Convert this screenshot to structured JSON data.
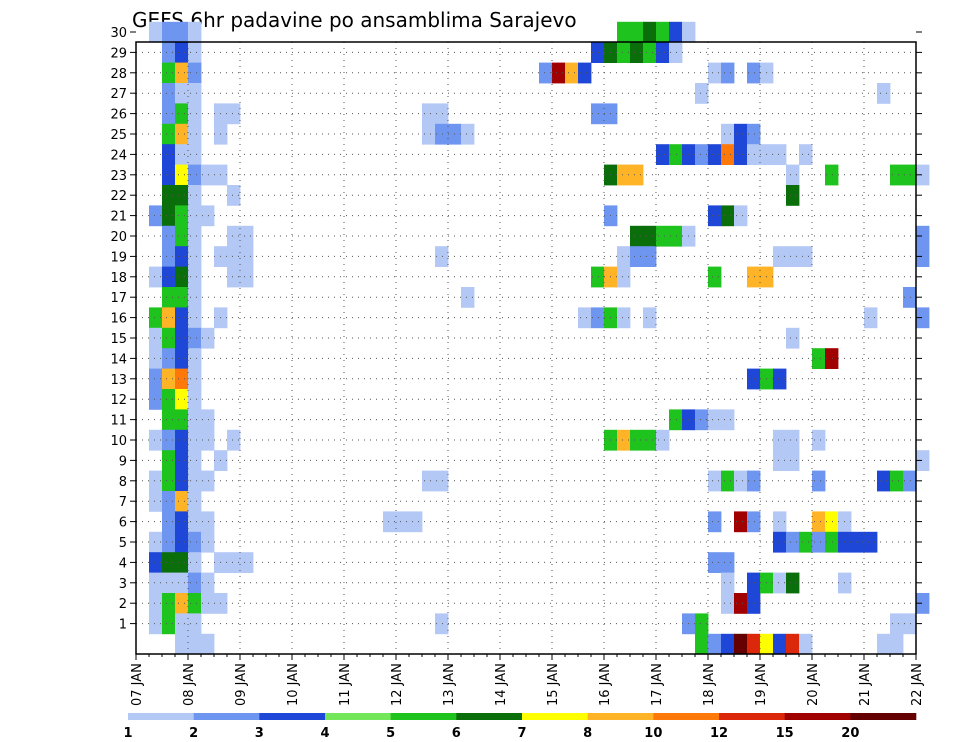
{
  "chart_data": {
    "type": "heatmap",
    "title": "GEFS 6hr padavine po ansamblima Sarajevo",
    "xlabel": "",
    "ylabel": "",
    "x_ticks": [
      "07 JAN",
      "08 JAN",
      "09 JAN",
      "10 JAN",
      "11 JAN",
      "12 JAN",
      "13 JAN",
      "14 JAN",
      "15 JAN",
      "16 JAN",
      "17 JAN",
      "18 JAN",
      "19 JAN",
      "20 JAN",
      "21 JAN",
      "22 JAN"
    ],
    "y_ticks": [
      "1",
      "2",
      "3",
      "4",
      "5",
      "6",
      "7",
      "8",
      "9",
      "10",
      "11",
      "12",
      "13",
      "14",
      "15",
      "16",
      "17",
      "18",
      "19",
      "20",
      "21",
      "22",
      "23",
      "24",
      "25",
      "26",
      "27",
      "28",
      "29",
      "30"
    ],
    "xlim": [
      0,
      60
    ],
    "ylim": [
      0,
      30
    ],
    "grid": true,
    "colorbar": {
      "labels": [
        "1",
        "2",
        "3",
        "4",
        "5",
        "6",
        "7",
        "8",
        "10",
        "12",
        "15",
        "20"
      ],
      "colors": [
        "#b4c8f5",
        "#6e96f0",
        "#1e46d7",
        "#73e65a",
        "#1ec31e",
        "#0a6e0a",
        "#ffff00",
        "#ffb428",
        "#ff780a",
        "#dc280a",
        "#a00000",
        "#640000"
      ]
    },
    "cells": [
      [
        1,
        30,
        1
      ],
      [
        2,
        30,
        2
      ],
      [
        3,
        30,
        2
      ],
      [
        4,
        30,
        1
      ],
      [
        37,
        30,
        5
      ],
      [
        38,
        30,
        5
      ],
      [
        39,
        30,
        6
      ],
      [
        40,
        30,
        5
      ],
      [
        41,
        30,
        3
      ],
      [
        42,
        30,
        1
      ],
      [
        2,
        29,
        2
      ],
      [
        3,
        29,
        3
      ],
      [
        4,
        29,
        1
      ],
      [
        35,
        29,
        3
      ],
      [
        36,
        29,
        6
      ],
      [
        37,
        29,
        5
      ],
      [
        38,
        29,
        6
      ],
      [
        39,
        29,
        5
      ],
      [
        40,
        29,
        3
      ],
      [
        41,
        29,
        1
      ],
      [
        2,
        28,
        5
      ],
      [
        3,
        28,
        8
      ],
      [
        4,
        28,
        2
      ],
      [
        31,
        28,
        2
      ],
      [
        32,
        28,
        11
      ],
      [
        33,
        28,
        8
      ],
      [
        34,
        28,
        3
      ],
      [
        44,
        28,
        1
      ],
      [
        45,
        28,
        2
      ],
      [
        47,
        28,
        2
      ],
      [
        48,
        28,
        1
      ],
      [
        2,
        27,
        2
      ],
      [
        3,
        27,
        1
      ],
      [
        4,
        27,
        1
      ],
      [
        43,
        27,
        1
      ],
      [
        57,
        27,
        1
      ],
      [
        2,
        26,
        2
      ],
      [
        3,
        26,
        5
      ],
      [
        4,
        26,
        1
      ],
      [
        6,
        26,
        1
      ],
      [
        7,
        26,
        1
      ],
      [
        22,
        26,
        1
      ],
      [
        23,
        26,
        1
      ],
      [
        35,
        26,
        2
      ],
      [
        36,
        26,
        2
      ],
      [
        2,
        25,
        5
      ],
      [
        3,
        25,
        8
      ],
      [
        4,
        25,
        1
      ],
      [
        6,
        25,
        1
      ],
      [
        22,
        25,
        1
      ],
      [
        23,
        25,
        2
      ],
      [
        24,
        25,
        2
      ],
      [
        25,
        25,
        1
      ],
      [
        45,
        25,
        1
      ],
      [
        46,
        25,
        3
      ],
      [
        47,
        25,
        2
      ],
      [
        2,
        24,
        3
      ],
      [
        3,
        24,
        1
      ],
      [
        4,
        24,
        1
      ],
      [
        40,
        24,
        3
      ],
      [
        41,
        24,
        5
      ],
      [
        42,
        24,
        3
      ],
      [
        43,
        24,
        2
      ],
      [
        44,
        24,
        3
      ],
      [
        45,
        24,
        9
      ],
      [
        46,
        24,
        3
      ],
      [
        47,
        24,
        1
      ],
      [
        48,
        24,
        1
      ],
      [
        49,
        24,
        1
      ],
      [
        51,
        24,
        1
      ],
      [
        2,
        23,
        3
      ],
      [
        3,
        23,
        7
      ],
      [
        4,
        23,
        2
      ],
      [
        5,
        23,
        1
      ],
      [
        6,
        23,
        1
      ],
      [
        36,
        23,
        6
      ],
      [
        37,
        23,
        8
      ],
      [
        38,
        23,
        8
      ],
      [
        50,
        23,
        1
      ],
      [
        53,
        23,
        5
      ],
      [
        58,
        23,
        5
      ],
      [
        59,
        23,
        5
      ],
      [
        60,
        23,
        1
      ],
      [
        2,
        22,
        6
      ],
      [
        3,
        22,
        6
      ],
      [
        4,
        22,
        1
      ],
      [
        7,
        22,
        1
      ],
      [
        50,
        22,
        6
      ],
      [
        1,
        21,
        2
      ],
      [
        2,
        21,
        6
      ],
      [
        3,
        21,
        5
      ],
      [
        4,
        21,
        1
      ],
      [
        5,
        21,
        1
      ],
      [
        36,
        21,
        2
      ],
      [
        44,
        21,
        3
      ],
      [
        45,
        21,
        6
      ],
      [
        46,
        21,
        1
      ],
      [
        2,
        20,
        2
      ],
      [
        3,
        20,
        5
      ],
      [
        4,
        20,
        1
      ],
      [
        7,
        20,
        1
      ],
      [
        8,
        20,
        1
      ],
      [
        38,
        20,
        6
      ],
      [
        39,
        20,
        6
      ],
      [
        40,
        20,
        5
      ],
      [
        41,
        20,
        5
      ],
      [
        42,
        20,
        1
      ],
      [
        60,
        20,
        2
      ],
      [
        2,
        19,
        2
      ],
      [
        3,
        19,
        3
      ],
      [
        4,
        19,
        1
      ],
      [
        6,
        19,
        1
      ],
      [
        7,
        19,
        1
      ],
      [
        8,
        19,
        1
      ],
      [
        23,
        19,
        1
      ],
      [
        37,
        19,
        1
      ],
      [
        38,
        19,
        2
      ],
      [
        39,
        19,
        2
      ],
      [
        49,
        19,
        1
      ],
      [
        50,
        19,
        1
      ],
      [
        51,
        19,
        1
      ],
      [
        60,
        19,
        2
      ],
      [
        1,
        18,
        1
      ],
      [
        2,
        18,
        3
      ],
      [
        3,
        18,
        6
      ],
      [
        4,
        18,
        1
      ],
      [
        7,
        18,
        1
      ],
      [
        8,
        18,
        1
      ],
      [
        35,
        18,
        5
      ],
      [
        36,
        18,
        8
      ],
      [
        37,
        18,
        1
      ],
      [
        44,
        18,
        5
      ],
      [
        47,
        18,
        8
      ],
      [
        48,
        18,
        8
      ],
      [
        2,
        17,
        5
      ],
      [
        3,
        17,
        5
      ],
      [
        4,
        17,
        1
      ],
      [
        25,
        17,
        1
      ],
      [
        59,
        17,
        2
      ],
      [
        1,
        16,
        5
      ],
      [
        2,
        16,
        8
      ],
      [
        3,
        16,
        3
      ],
      [
        4,
        16,
        1
      ],
      [
        6,
        16,
        1
      ],
      [
        34,
        16,
        1
      ],
      [
        35,
        16,
        2
      ],
      [
        36,
        16,
        5
      ],
      [
        37,
        16,
        1
      ],
      [
        39,
        16,
        1
      ],
      [
        56,
        16,
        1
      ],
      [
        60,
        16,
        2
      ],
      [
        1,
        15,
        1
      ],
      [
        2,
        15,
        5
      ],
      [
        3,
        15,
        3
      ],
      [
        4,
        15,
        2
      ],
      [
        5,
        15,
        1
      ],
      [
        50,
        15,
        1
      ],
      [
        1,
        14,
        1
      ],
      [
        2,
        14,
        2
      ],
      [
        3,
        14,
        3
      ],
      [
        4,
        14,
        1
      ],
      [
        52,
        14,
        5
      ],
      [
        53,
        14,
        11
      ],
      [
        1,
        13,
        2
      ],
      [
        2,
        13,
        8
      ],
      [
        3,
        13,
        9
      ],
      [
        4,
        13,
        1
      ],
      [
        47,
        13,
        3
      ],
      [
        48,
        13,
        5
      ],
      [
        49,
        13,
        3
      ],
      [
        1,
        12,
        2
      ],
      [
        2,
        12,
        5
      ],
      [
        3,
        12,
        7
      ],
      [
        4,
        12,
        1
      ],
      [
        2,
        11,
        5
      ],
      [
        3,
        11,
        5
      ],
      [
        4,
        11,
        1
      ],
      [
        5,
        11,
        1
      ],
      [
        41,
        11,
        5
      ],
      [
        42,
        11,
        3
      ],
      [
        43,
        11,
        2
      ],
      [
        44,
        11,
        1
      ],
      [
        45,
        11,
        1
      ],
      [
        1,
        10,
        1
      ],
      [
        2,
        10,
        2
      ],
      [
        3,
        10,
        3
      ],
      [
        4,
        10,
        1
      ],
      [
        5,
        10,
        1
      ],
      [
        7,
        10,
        1
      ],
      [
        36,
        10,
        5
      ],
      [
        37,
        10,
        8
      ],
      [
        38,
        10,
        5
      ],
      [
        39,
        10,
        5
      ],
      [
        40,
        10,
        1
      ],
      [
        49,
        10,
        1
      ],
      [
        50,
        10,
        1
      ],
      [
        52,
        10,
        1
      ],
      [
        2,
        9,
        5
      ],
      [
        3,
        9,
        3
      ],
      [
        4,
        9,
        1
      ],
      [
        6,
        9,
        1
      ],
      [
        49,
        9,
        1
      ],
      [
        50,
        9,
        1
      ],
      [
        60,
        9,
        1
      ],
      [
        1,
        8,
        1
      ],
      [
        2,
        8,
        5
      ],
      [
        3,
        8,
        3
      ],
      [
        4,
        8,
        1
      ],
      [
        5,
        8,
        1
      ],
      [
        22,
        8,
        1
      ],
      [
        23,
        8,
        1
      ],
      [
        44,
        8,
        1
      ],
      [
        45,
        8,
        5
      ],
      [
        46,
        8,
        1
      ],
      [
        47,
        8,
        2
      ],
      [
        52,
        8,
        2
      ],
      [
        57,
        8,
        3
      ],
      [
        58,
        8,
        5
      ],
      [
        59,
        8,
        2
      ],
      [
        1,
        7,
        1
      ],
      [
        2,
        7,
        2
      ],
      [
        3,
        7,
        8
      ],
      [
        4,
        7,
        1
      ],
      [
        2,
        6,
        2
      ],
      [
        3,
        6,
        3
      ],
      [
        4,
        6,
        1
      ],
      [
        5,
        6,
        1
      ],
      [
        19,
        6,
        1
      ],
      [
        20,
        6,
        1
      ],
      [
        21,
        6,
        1
      ],
      [
        44,
        6,
        2
      ],
      [
        46,
        6,
        11
      ],
      [
        47,
        6,
        2
      ],
      [
        49,
        6,
        1
      ],
      [
        52,
        6,
        8
      ],
      [
        53,
        6,
        7
      ],
      [
        54,
        6,
        1
      ],
      [
        1,
        5,
        1
      ],
      [
        2,
        5,
        2
      ],
      [
        3,
        5,
        3
      ],
      [
        4,
        5,
        2
      ],
      [
        5,
        5,
        1
      ],
      [
        49,
        5,
        3
      ],
      [
        50,
        5,
        2
      ],
      [
        51,
        5,
        5
      ],
      [
        52,
        5,
        2
      ],
      [
        53,
        5,
        5
      ],
      [
        54,
        5,
        3
      ],
      [
        55,
        5,
        3
      ],
      [
        56,
        5,
        3
      ],
      [
        1,
        4,
        3
      ],
      [
        2,
        4,
        6
      ],
      [
        3,
        4,
        6
      ],
      [
        4,
        4,
        1
      ],
      [
        6,
        4,
        1
      ],
      [
        7,
        4,
        1
      ],
      [
        8,
        4,
        1
      ],
      [
        44,
        4,
        2
      ],
      [
        45,
        4,
        2
      ],
      [
        1,
        3,
        1
      ],
      [
        2,
        3,
        1
      ],
      [
        3,
        3,
        1
      ],
      [
        4,
        3,
        2
      ],
      [
        5,
        3,
        1
      ],
      [
        45,
        3,
        1
      ],
      [
        47,
        3,
        3
      ],
      [
        48,
        3,
        5
      ],
      [
        49,
        3,
        1
      ],
      [
        50,
        3,
        6
      ],
      [
        54,
        3,
        1
      ],
      [
        1,
        2,
        1
      ],
      [
        2,
        2,
        5
      ],
      [
        3,
        2,
        8
      ],
      [
        4,
        2,
        5
      ],
      [
        5,
        2,
        1
      ],
      [
        6,
        2,
        1
      ],
      [
        45,
        2,
        1
      ],
      [
        46,
        2,
        11
      ],
      [
        47,
        2,
        3
      ],
      [
        60,
        2,
        2
      ],
      [
        1,
        1,
        1
      ],
      [
        2,
        1,
        5
      ],
      [
        3,
        1,
        1
      ],
      [
        4,
        1,
        1
      ],
      [
        23,
        1,
        1
      ],
      [
        42,
        1,
        2
      ],
      [
        43,
        1,
        5
      ],
      [
        58,
        1,
        1
      ],
      [
        59,
        1,
        1
      ],
      [
        3,
        0,
        1
      ],
      [
        4,
        0,
        1
      ],
      [
        5,
        0,
        1
      ],
      [
        43,
        0,
        5
      ],
      [
        44,
        0,
        2
      ],
      [
        45,
        0,
        3
      ],
      [
        46,
        0,
        12
      ],
      [
        47,
        0,
        10
      ],
      [
        48,
        0,
        7
      ],
      [
        49,
        0,
        3
      ],
      [
        50,
        0,
        10
      ],
      [
        51,
        0,
        1
      ],
      [
        57,
        0,
        1
      ],
      [
        58,
        0,
        1
      ]
    ]
  }
}
